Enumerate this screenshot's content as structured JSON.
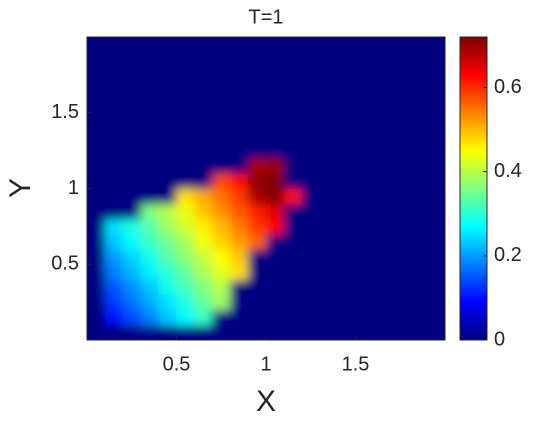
{
  "chart_data": {
    "type": "heatmap",
    "title": "T=1",
    "x_label": "X",
    "y_label": "Y",
    "xlim": [
      0,
      2
    ],
    "ylim": [
      0,
      2
    ],
    "xticks": [
      0.5,
      1,
      1.5
    ],
    "yticks": [
      0.5,
      1,
      1.5
    ],
    "colormap": "jet",
    "clim": [
      0,
      0.72
    ],
    "colorbar_ticks": [
      0,
      0.2,
      0.4,
      0.6
    ],
    "x": [
      0.05,
      0.15,
      0.25,
      0.35,
      0.45,
      0.55,
      0.65,
      0.75,
      0.85,
      0.95,
      1.05,
      1.15,
      1.25,
      1.35,
      1.45,
      1.55,
      1.65,
      1.75,
      1.85,
      1.95
    ],
    "y": [
      0.05,
      0.15,
      0.25,
      0.35,
      0.45,
      0.55,
      0.65,
      0.75,
      0.85,
      0.95,
      1.05,
      1.15,
      1.25,
      1.35,
      1.45,
      1.55,
      1.65,
      1.75,
      1.85,
      1.95
    ],
    "z": [
      [
        0,
        0,
        0,
        0,
        0,
        0,
        0,
        0,
        0,
        0,
        0,
        0,
        0,
        0,
        0,
        0,
        0,
        0,
        0,
        0
      ],
      [
        0,
        0.1,
        0.14,
        0.18,
        0.23,
        0.27,
        0.31,
        0,
        0,
        0,
        0,
        0,
        0,
        0,
        0,
        0,
        0,
        0,
        0,
        0
      ],
      [
        0,
        0.13,
        0.17,
        0.21,
        0.25,
        0.29,
        0.34,
        0.38,
        0,
        0,
        0,
        0,
        0,
        0,
        0,
        0,
        0,
        0,
        0,
        0
      ],
      [
        0,
        0.15,
        0.19,
        0.23,
        0.28,
        0.32,
        0.36,
        0.4,
        0,
        0,
        0,
        0,
        0,
        0,
        0,
        0,
        0,
        0,
        0,
        0
      ],
      [
        0,
        0.18,
        0.22,
        0.26,
        0.3,
        0.34,
        0.39,
        0.43,
        0.47,
        0,
        0,
        0,
        0,
        0,
        0,
        0,
        0,
        0,
        0,
        0
      ],
      [
        0,
        0.2,
        0.24,
        0.28,
        0.33,
        0.37,
        0.41,
        0.45,
        0.49,
        0,
        0,
        0,
        0,
        0,
        0,
        0,
        0,
        0,
        0,
        0
      ],
      [
        0,
        0.23,
        0.27,
        0.31,
        0.35,
        0.39,
        0.44,
        0.48,
        0.52,
        0.56,
        0,
        0,
        0,
        0,
        0,
        0,
        0,
        0,
        0,
        0
      ],
      [
        0,
        0.25,
        0.29,
        0.33,
        0.38,
        0.42,
        0.46,
        0.5,
        0.54,
        0.59,
        0.63,
        0,
        0,
        0,
        0,
        0,
        0,
        0,
        0,
        0
      ],
      [
        0,
        0,
        0,
        0.36,
        0.4,
        0.44,
        0.49,
        0.53,
        0.57,
        0.61,
        0.65,
        0,
        0,
        0,
        0,
        0,
        0,
        0,
        0,
        0
      ],
      [
        0,
        0,
        0,
        0,
        0,
        0.47,
        0.51,
        0.55,
        0.59,
        0.69,
        0.72,
        0.62,
        0,
        0,
        0,
        0,
        0,
        0,
        0,
        0
      ],
      [
        0,
        0,
        0,
        0,
        0,
        0,
        0,
        0.58,
        0.62,
        0.71,
        0.72,
        0,
        0,
        0,
        0,
        0,
        0,
        0,
        0,
        0
      ],
      [
        0,
        0,
        0,
        0,
        0,
        0,
        0,
        0,
        0,
        0.69,
        0.7,
        0,
        0,
        0,
        0,
        0,
        0,
        0,
        0,
        0
      ],
      [
        0,
        0,
        0,
        0,
        0,
        0,
        0,
        0,
        0,
        0,
        0,
        0,
        0,
        0,
        0,
        0,
        0,
        0,
        0,
        0
      ],
      [
        0,
        0,
        0,
        0,
        0,
        0,
        0,
        0,
        0,
        0,
        0,
        0,
        0,
        0,
        0,
        0,
        0,
        0,
        0,
        0
      ],
      [
        0,
        0,
        0,
        0,
        0,
        0,
        0,
        0,
        0,
        0,
        0,
        0,
        0,
        0,
        0,
        0,
        0,
        0,
        0,
        0
      ],
      [
        0,
        0,
        0,
        0,
        0,
        0,
        0,
        0,
        0,
        0,
        0,
        0,
        0,
        0,
        0,
        0,
        0,
        0,
        0,
        0
      ],
      [
        0,
        0,
        0,
        0,
        0,
        0,
        0,
        0,
        0,
        0,
        0,
        0,
        0,
        0,
        0,
        0,
        0,
        0,
        0,
        0
      ],
      [
        0,
        0,
        0,
        0,
        0,
        0,
        0,
        0,
        0,
        0,
        0,
        0,
        0,
        0,
        0,
        0,
        0,
        0,
        0,
        0
      ],
      [
        0,
        0,
        0,
        0,
        0,
        0,
        0,
        0,
        0,
        0,
        0,
        0,
        0,
        0,
        0,
        0,
        0,
        0,
        0,
        0
      ],
      [
        0,
        0,
        0,
        0,
        0,
        0,
        0,
        0,
        0,
        0,
        0,
        0,
        0,
        0,
        0,
        0,
        0,
        0,
        0,
        0
      ]
    ]
  }
}
